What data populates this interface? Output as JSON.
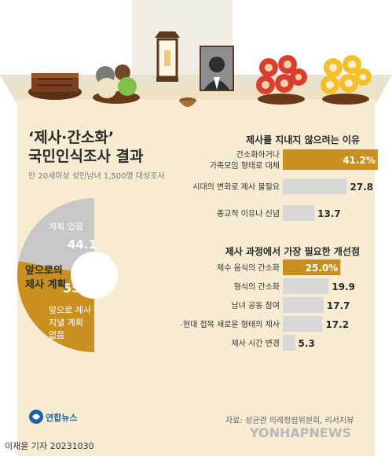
{
  "header": {
    "title_line1": "‘제사·간소화’",
    "title_line2": "국민인식조사 결과",
    "subtitle": "만 20세이상 성인남녀 1,500명 대상조사"
  },
  "colors": {
    "accent": "#c9901f",
    "gray_bar": "#d8d8d8",
    "pie_gray": "#c7c7c7",
    "table": "#f7ecd2",
    "wall": "#e9e2cf"
  },
  "chart_data": [
    {
      "type": "pie",
      "title": "앞으로의 제사 계획",
      "slices": [
        {
          "label": "계획 있음",
          "value": 44.1,
          "value_label": "44.1",
          "color": "#c7c7c7"
        },
        {
          "label": "앞으로 제사 지낼 계획 없음",
          "value": 55.9,
          "value_label": "55.9%",
          "color": "#c9901f"
        }
      ]
    },
    {
      "type": "bar",
      "orientation": "horizontal",
      "title": "제사를 지내지 않으려는 이유",
      "categories": [
        "간소화하거나 가족모임 형태로 대체",
        "시대의 변화로 제사 불필요",
        "종교적 이유나 신념"
      ],
      "category_lines": [
        [
          "간소화하거나",
          "가족모임 형태로 대체"
        ],
        [
          "시대의 변화로 제사 불필요"
        ],
        [
          "종교적 이유나 신념"
        ]
      ],
      "values": [
        41.2,
        27.8,
        13.7
      ],
      "value_labels": [
        "41.2%",
        "27.8",
        "13.7"
      ],
      "xlim": [
        0,
        45
      ]
    },
    {
      "type": "bar",
      "orientation": "horizontal",
      "title": "제사 과정에서 가장 필요한 개선점",
      "categories": [
        "제수 음식의 간소화",
        "형식의 간소화",
        "남녀 공동 참여",
        "전통+현대 접목 새로운 형태의 제사",
        "제사 시간 변경"
      ],
      "category_lines": [
        [
          "제수 음식의 간소화"
        ],
        [
          "형식의 간소화"
        ],
        [
          "남녀 공동 참여"
        ],
        [
          "전통+현대 접목 새로운 형태의 제사"
        ],
        [
          "제사 시간 변경"
        ]
      ],
      "values": [
        25.0,
        19.9,
        17.7,
        17.2,
        5.3
      ],
      "value_labels": [
        "25.0%",
        "19.9",
        "17.7",
        "17.2",
        "5.3"
      ],
      "xlim": [
        0,
        45
      ]
    }
  ],
  "footer": {
    "source": "자료: 성균관 의례정립위원회, 리서치뷰",
    "agency_logo": "연합뉴스",
    "byline": "이재윤 기자  20231030",
    "watermark": "YONHAPNEWS"
  }
}
